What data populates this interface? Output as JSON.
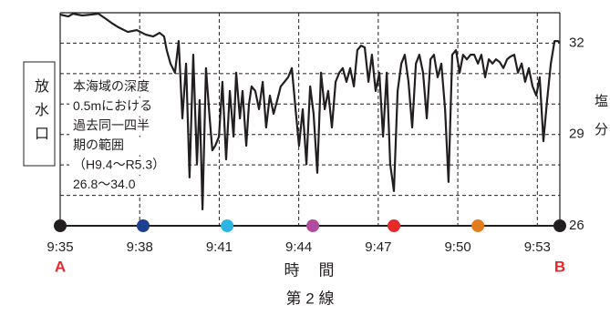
{
  "chart_data": {
    "type": "line",
    "title": "第 2 線",
    "xlabel": "時　間",
    "ylabel": "塩分",
    "left_label": "放水口",
    "annotation": [
      "本海域の深度",
      "0.5mにおける",
      "過去同一四半",
      "期の範囲",
      "（H9.4～R5.3）",
      "26.8～34.0"
    ],
    "end_labels": [
      "A",
      "B"
    ],
    "end_label_color": "#e8282b",
    "xlim": [
      35,
      53.85
    ],
    "xticks": [
      {
        "value": 35,
        "label": "9:35"
      },
      {
        "value": 38,
        "label": "9:38"
      },
      {
        "value": 41,
        "label": "9:41"
      },
      {
        "value": 44,
        "label": "9:44"
      },
      {
        "value": 47,
        "label": "9:47"
      },
      {
        "value": 50,
        "label": "9:50"
      },
      {
        "value": 53,
        "label": "9:53"
      }
    ],
    "ylim": [
      26,
      33
    ],
    "yticks": [
      26,
      29,
      32
    ],
    "minor_yticks": [
      27,
      28,
      30,
      31
    ],
    "grid": true,
    "series": [
      {
        "color": "#231f20",
        "x": [
          35.0,
          35.31,
          35.48,
          35.83,
          36.17,
          36.44,
          36.69,
          36.93,
          37.2,
          37.55,
          37.89,
          38.23,
          38.51,
          38.75,
          38.92,
          39.02,
          39.16,
          39.33,
          39.47,
          39.61,
          39.75,
          39.88,
          40.02,
          40.16,
          40.26,
          40.37,
          40.5,
          40.64,
          40.74,
          40.85,
          40.99,
          41.12,
          41.26,
          41.4,
          41.54,
          41.64,
          41.78,
          41.88,
          42.02,
          42.12,
          42.22,
          42.36,
          42.5,
          42.64,
          42.77,
          42.91,
          43.05,
          43.19,
          43.32,
          43.46,
          43.6,
          43.74,
          43.88,
          44.01,
          44.15,
          44.29,
          44.43,
          44.56,
          44.7,
          44.84,
          44.98,
          45.11,
          45.25,
          45.39,
          45.53,
          45.66,
          45.8,
          45.94,
          46.08,
          46.21,
          46.35,
          46.49,
          46.63,
          46.76,
          46.9,
          47.04,
          47.18,
          47.32,
          47.45,
          47.59,
          47.73,
          47.87,
          48.0,
          48.14,
          48.28,
          48.42,
          48.55,
          48.69,
          48.83,
          48.97,
          49.1,
          49.24,
          49.38,
          49.52,
          49.65,
          49.79,
          49.93,
          50.07,
          50.2,
          50.34,
          50.48,
          50.62,
          50.76,
          50.89,
          51.03,
          51.17,
          51.31,
          51.44,
          51.58,
          51.72,
          51.86,
          51.99,
          52.13,
          52.27,
          52.41,
          52.54,
          52.68,
          52.82,
          52.96,
          53.09,
          53.23,
          53.37,
          53.51,
          53.65,
          53.78,
          53.85
        ],
        "values": [
          32.94,
          32.88,
          32.97,
          32.91,
          32.94,
          32.97,
          32.82,
          32.67,
          32.52,
          32.37,
          32.43,
          32.28,
          32.22,
          32.34,
          32.22,
          31.77,
          31.33,
          31.03,
          32.07,
          29.53,
          31.33,
          27.59,
          31.62,
          28.03,
          30.13,
          26.54,
          31.18,
          29.53,
          28.48,
          28.63,
          28.93,
          30.73,
          28.18,
          30.43,
          28.93,
          31.03,
          29.53,
          30.43,
          28.63,
          29.98,
          30.58,
          30.43,
          29.83,
          30.73,
          29.23,
          30.28,
          29.68,
          30.13,
          30.58,
          30.73,
          30.88,
          31.18,
          29.83,
          28.63,
          29.83,
          28.03,
          30.58,
          29.68,
          27.74,
          31.03,
          29.83,
          30.43,
          29.23,
          30.73,
          31.03,
          31.18,
          30.73,
          31.18,
          30.58,
          31.77,
          31.92,
          31.86,
          30.73,
          31.62,
          30.43,
          31.03,
          28.93,
          31.03,
          28.03,
          27.14,
          30.43,
          31.33,
          31.62,
          30.73,
          29.23,
          31.33,
          31.62,
          31.03,
          29.53,
          31.47,
          31.62,
          30.88,
          31.33,
          29.83,
          27.44,
          31.62,
          31.77,
          31.03,
          31.62,
          31.47,
          31.62,
          31.62,
          31.33,
          31.62,
          30.88,
          31.47,
          31.33,
          31.47,
          31.38,
          31.18,
          31.47,
          31.56,
          31.62,
          31.03,
          31.33,
          30.73,
          31.18,
          30.58,
          30.28,
          30.88,
          28.78,
          30.13,
          31.33,
          32.07,
          32.07,
          32.01
        ]
      }
    ],
    "markers": {
      "x": [
        35.0,
        38.13,
        41.3,
        44.53,
        47.59,
        50.76,
        53.85
      ],
      "colors": [
        "#231f20",
        "#1d3f8f",
        "#2bb5e0",
        "#b04ca0",
        "#e52a2a",
        "#e27c1e",
        "#231f20"
      ]
    }
  }
}
